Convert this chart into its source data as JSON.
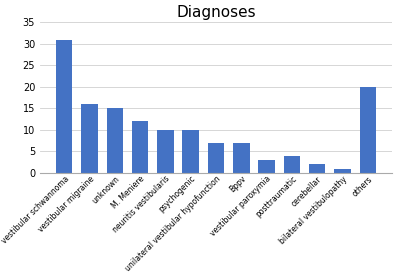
{
  "title": "Diagnoses",
  "categories": [
    "vestibular schwannoma",
    "vestibular migraine",
    "unknown",
    "M. Meniere",
    "neuritis vestibularis",
    "psychogenic",
    "unilateral vestibular hypofunction",
    "Bppv",
    "vestibular paroxymia",
    "posttraumatic",
    "cerebellar",
    "bilateral vestibulopathy",
    "others"
  ],
  "values": [
    31,
    16,
    15,
    12,
    10,
    10,
    7,
    7,
    3,
    4,
    2,
    1,
    20
  ],
  "bar_color": "#4472C4",
  "ylim": [
    0,
    35
  ],
  "yticks": [
    0,
    5,
    10,
    15,
    20,
    25,
    30,
    35
  ],
  "title_fontsize": 11,
  "tick_fontsize": 5.5,
  "ytick_fontsize": 7,
  "background_color": "#ffffff",
  "grid_color": "#d0d0d0"
}
